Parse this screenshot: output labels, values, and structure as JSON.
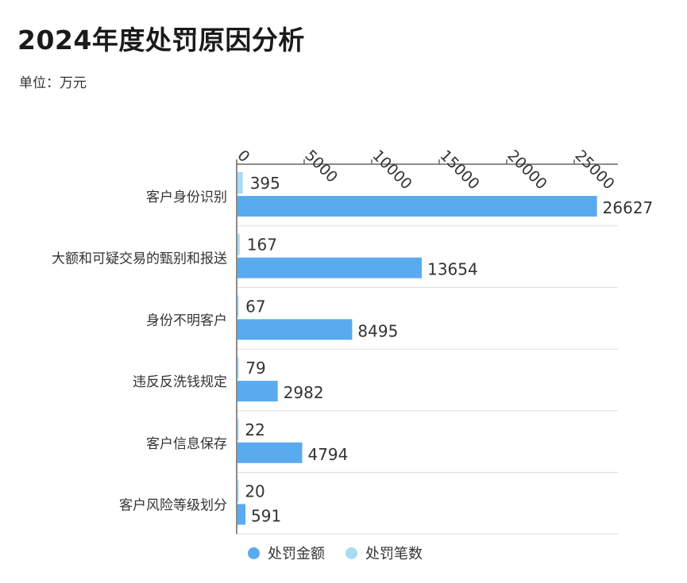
{
  "title": "2024年度处罚原因分析",
  "unit_label": "单位：万元",
  "colors": {
    "amount": "#5aaaf0",
    "count": "#a8dcf2",
    "axis": "#666666",
    "grid": "#d7dde3"
  },
  "legend": [
    {
      "label": "处罚金额",
      "color": "#5aaaf0"
    },
    {
      "label": "处罚笔数",
      "color": "#a8dcf2"
    }
  ],
  "chart_data": {
    "type": "bar",
    "orientation": "horizontal",
    "categories": [
      "客户身份识别",
      "大额和可疑交易的甄别和报送",
      "身份不明客户",
      "违反反洗钱规定",
      "客户信息保存",
      "客户风险等级划分"
    ],
    "series": [
      {
        "name": "处罚笔数",
        "values": [
          395,
          167,
          67,
          79,
          22,
          20
        ]
      },
      {
        "name": "处罚金额",
        "values": [
          26627,
          13654,
          8495,
          2982,
          4794,
          591
        ]
      }
    ],
    "x_ticks": [
      0,
      5000,
      10000,
      15000,
      20000,
      25000
    ],
    "xlim": [
      0,
      28000
    ],
    "x_axis_position": "top",
    "legend_position": "bottom",
    "grid": true
  }
}
